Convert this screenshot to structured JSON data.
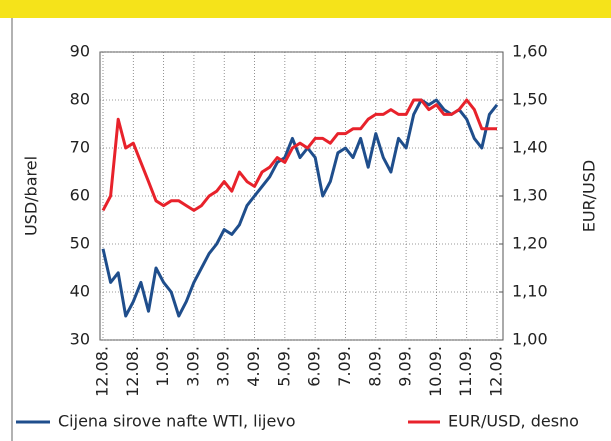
{
  "chart_data": {
    "type": "line",
    "y_label": "USD/barel",
    "y2_label": "EUR/USD",
    "x": [
      0,
      0.25,
      0.5,
      0.75,
      1,
      1.25,
      1.5,
      1.75,
      2,
      2.25,
      2.5,
      2.75,
      3,
      3.25,
      3.5,
      3.75,
      4,
      4.25,
      4.5,
      4.75,
      5,
      5.25,
      5.5,
      5.75,
      6,
      6.25,
      6.5,
      6.75,
      7,
      7.25,
      7.5,
      7.75,
      8,
      8.25,
      8.5,
      8.75,
      9,
      9.25,
      9.5,
      9.75,
      10,
      10.25,
      10.5,
      10.75,
      11,
      11.25,
      11.5,
      11.75,
      12,
      12.25,
      12.5,
      12.75,
      13
    ],
    "xlim": [
      0,
      13
    ],
    "xticks": [
      {
        "value": 0,
        "label": "12.08."
      },
      {
        "value": 1,
        "label": "12.08."
      },
      {
        "value": 2,
        "label": "1.09."
      },
      {
        "value": 3,
        "label": "3.09."
      },
      {
        "value": 4,
        "label": "3.09."
      },
      {
        "value": 5,
        "label": "4.09."
      },
      {
        "value": 6,
        "label": "5.09."
      },
      {
        "value": 7,
        "label": "6.09."
      },
      {
        "value": 8,
        "label": "7.09."
      },
      {
        "value": 9,
        "label": "8.09."
      },
      {
        "value": 10,
        "label": "9.09."
      },
      {
        "value": 11,
        "label": "10.09."
      },
      {
        "value": 12,
        "label": "11.09."
      },
      {
        "value": 13,
        "label": "12.09."
      }
    ],
    "ylim": [
      30,
      90
    ],
    "yticks": [
      30,
      40,
      50,
      60,
      70,
      80,
      90
    ],
    "y2lim": [
      1.0,
      1.6
    ],
    "y2ticks": [
      {
        "value": 1.0,
        "label": "1,00"
      },
      {
        "value": 1.1,
        "label": "1,10"
      },
      {
        "value": 1.2,
        "label": "1,20"
      },
      {
        "value": 1.3,
        "label": "1,30"
      },
      {
        "value": 1.4,
        "label": "1,40"
      },
      {
        "value": 1.5,
        "label": "1,50"
      },
      {
        "value": 1.6,
        "label": "1,60"
      }
    ],
    "grid": true,
    "series": [
      {
        "name": "Cijena sirove nafte WTI, lijevo",
        "color": "#1f4e8c",
        "values": [
          49,
          42,
          44,
          35,
          38,
          42,
          36,
          45,
          42,
          40,
          35,
          38,
          42,
          45,
          48,
          50,
          53,
          52,
          54,
          58,
          60,
          62,
          64,
          67,
          68,
          72,
          68,
          70,
          68,
          60,
          63,
          69,
          70,
          68,
          72,
          66,
          73,
          68,
          65,
          72,
          70,
          77,
          80,
          79,
          80,
          78,
          77,
          78,
          76,
          72,
          70,
          77,
          79
        ]
      },
      {
        "name": "EUR/USD, desno",
        "color": "#e8222b",
        "axis": "y2",
        "values": [
          1.27,
          1.3,
          1.46,
          1.4,
          1.41,
          1.37,
          1.33,
          1.29,
          1.28,
          1.29,
          1.29,
          1.28,
          1.27,
          1.28,
          1.3,
          1.31,
          1.33,
          1.31,
          1.35,
          1.33,
          1.32,
          1.35,
          1.36,
          1.38,
          1.37,
          1.4,
          1.41,
          1.4,
          1.42,
          1.42,
          1.41,
          1.43,
          1.43,
          1.44,
          1.44,
          1.46,
          1.47,
          1.47,
          1.48,
          1.47,
          1.47,
          1.5,
          1.5,
          1.48,
          1.49,
          1.47,
          1.47,
          1.48,
          1.5,
          1.48,
          1.44,
          1.44,
          1.44
        ]
      }
    ]
  }
}
